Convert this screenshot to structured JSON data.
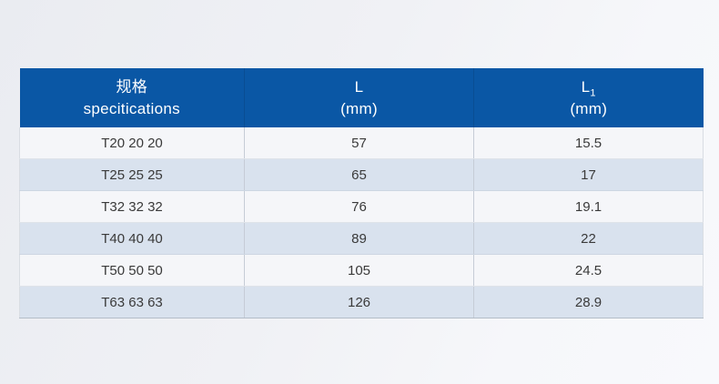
{
  "chart_data": {
    "type": "table",
    "title": "",
    "columns": [
      "规格 specitications",
      "L (mm)",
      "L1 (mm)"
    ],
    "rows": [
      [
        "T20 20 20",
        "57",
        "15.5"
      ],
      [
        "T25 25 25",
        "65",
        "17"
      ],
      [
        "T32 32 32",
        "76",
        "19.1"
      ],
      [
        "T40 40 40",
        "89",
        "22"
      ],
      [
        "T50 50 50",
        "105",
        "24.5"
      ],
      [
        "T63 63 63",
        "126",
        "28.9"
      ]
    ],
    "layout": {
      "header_position": "top",
      "row_striping": "alternating",
      "grid": "on"
    }
  },
  "table": {
    "header": {
      "col1": {
        "line1": "规格",
        "line2": "specitications"
      },
      "col2": {
        "symbol": "L",
        "unit": "(mm)"
      },
      "col3": {
        "symbol": "L",
        "subscript": "1",
        "unit": "(mm)"
      }
    }
  },
  "colors": {
    "header_bg": "#0a57a5",
    "header_divider": "#094d93",
    "header_text": "#ffffff",
    "row_white_bg": "#f5f6f9",
    "row_blue_bg": "#d9e2ee",
    "body_text": "#3a3a3a",
    "grid_line": "#c6ccd6",
    "page_bg": "#f0f1f5"
  }
}
